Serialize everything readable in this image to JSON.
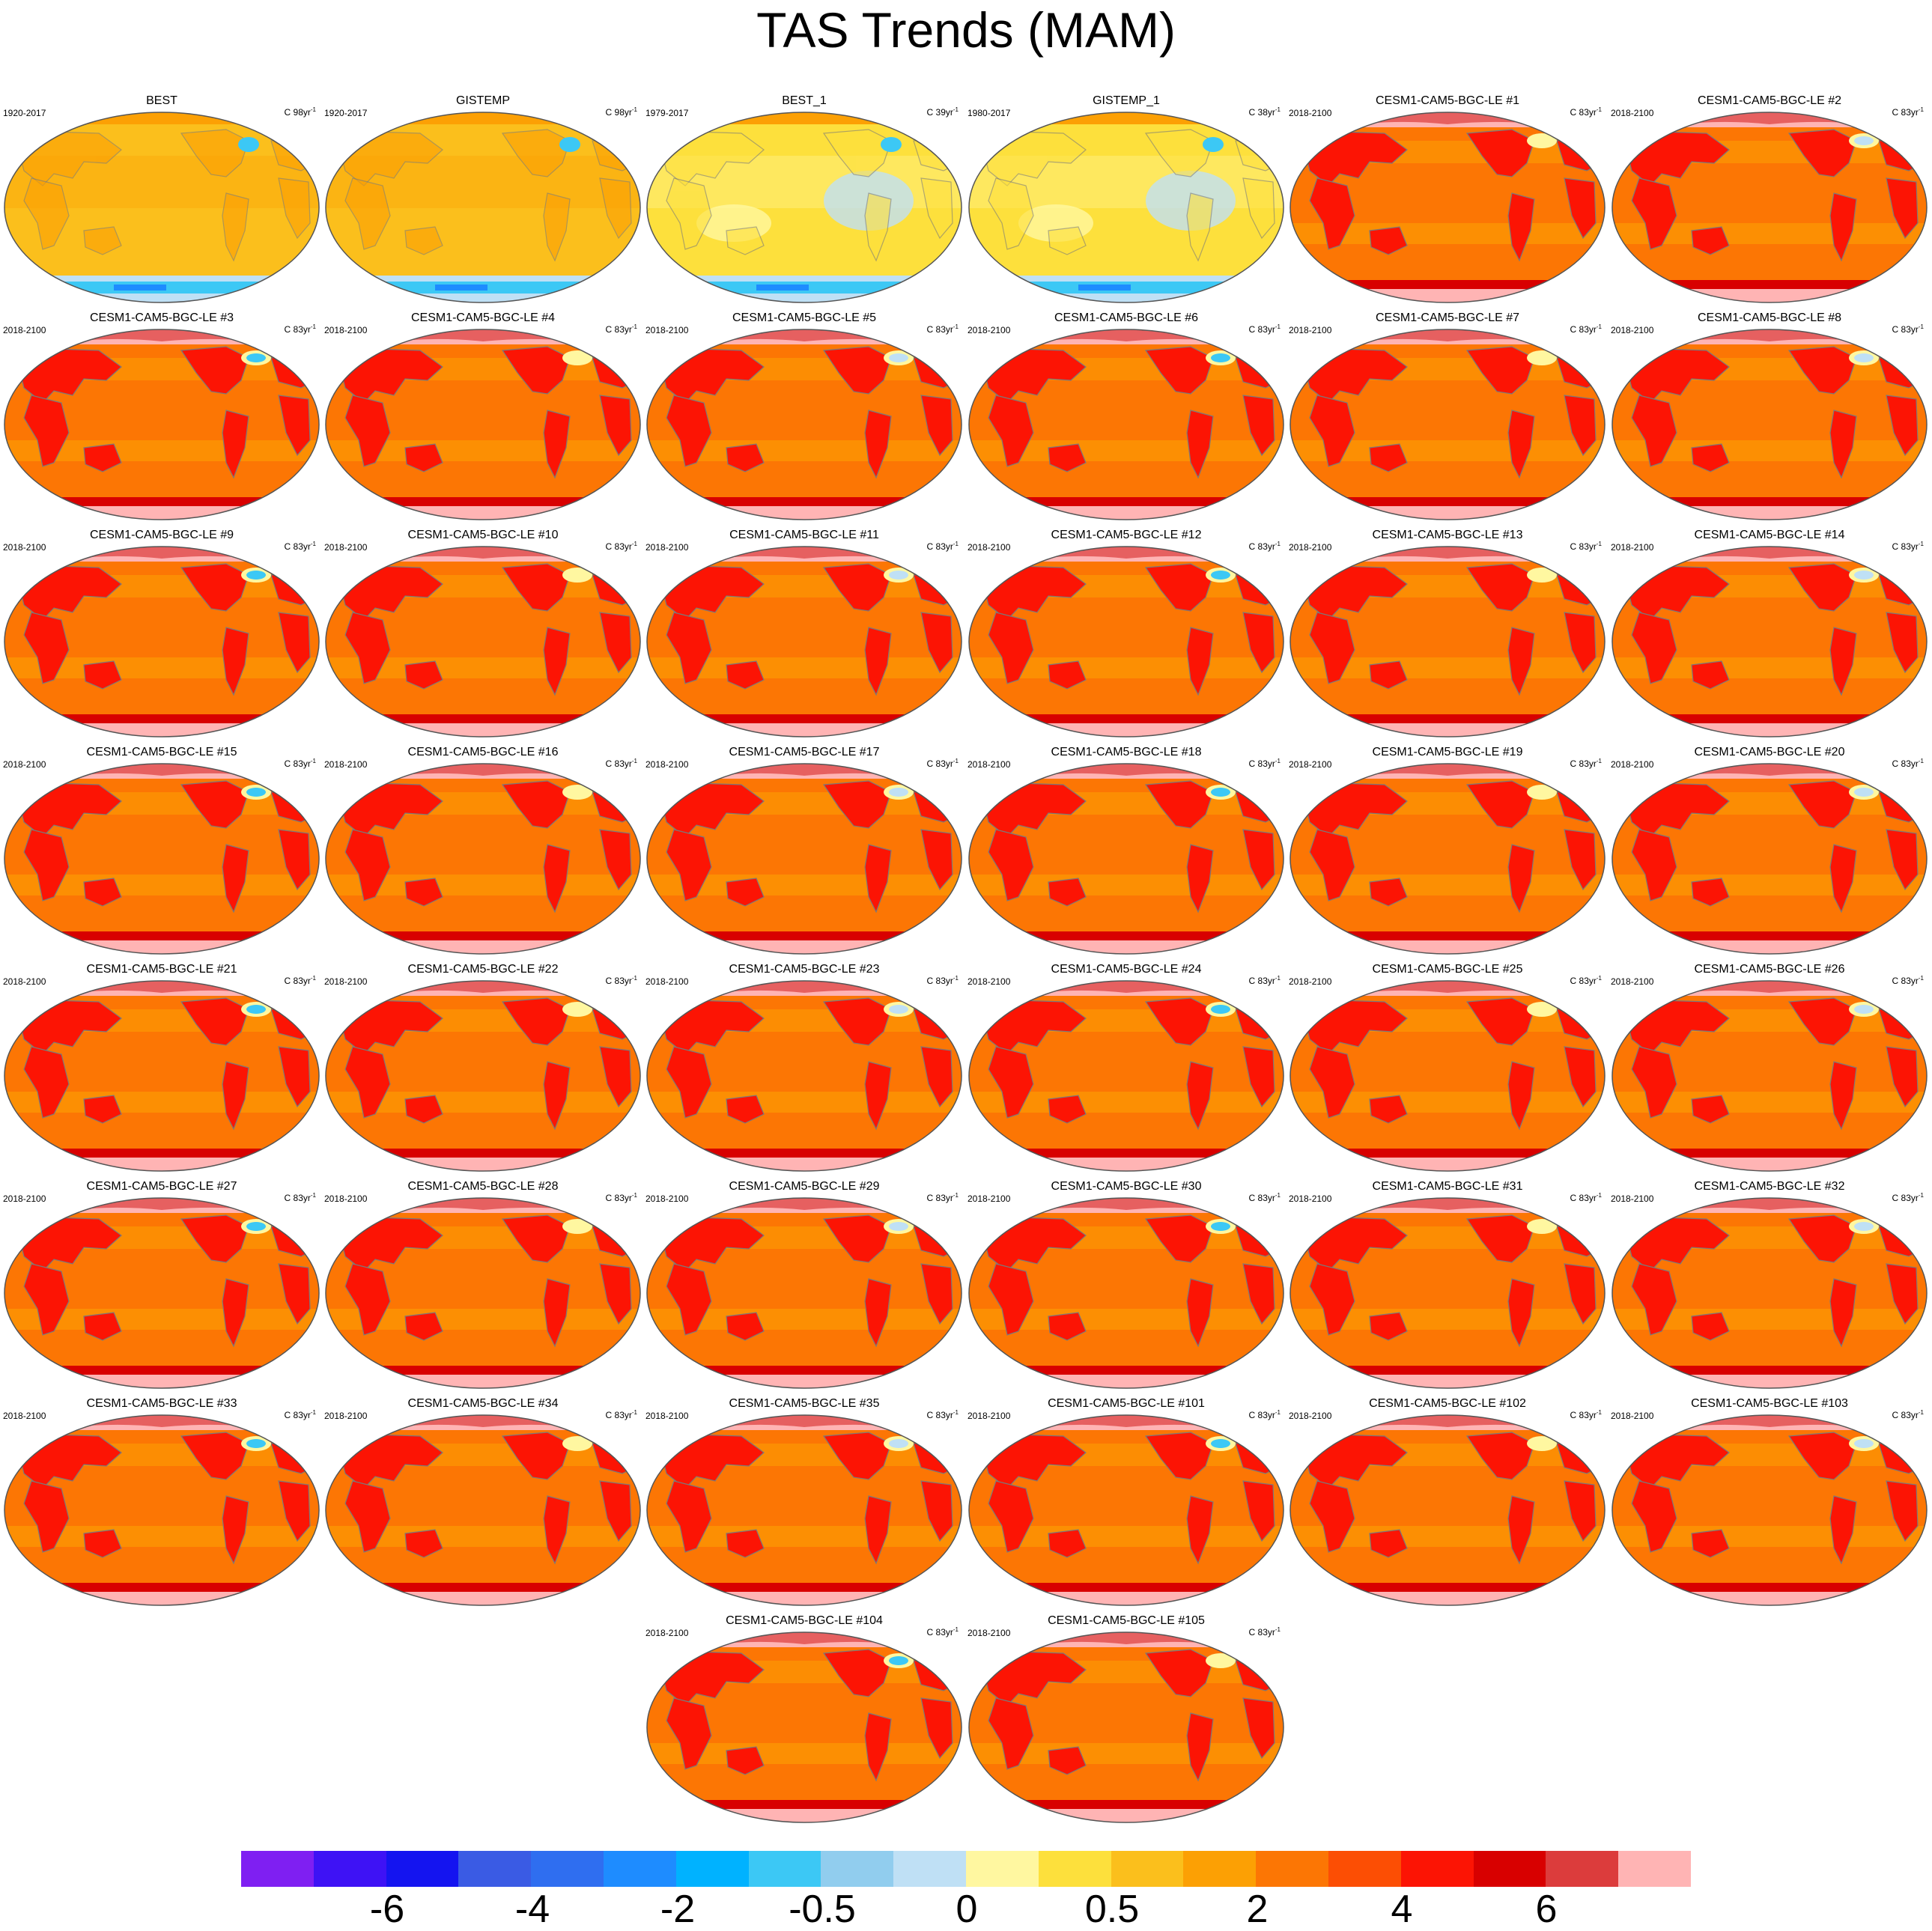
{
  "title": "TAS Trends (MAM)",
  "panels": [
    {
      "title": "BEST",
      "period": "1920-2017",
      "unit": "C 98yr",
      "unit_exp": "-1",
      "style": "obs"
    },
    {
      "title": "GISTEMP",
      "period": "1920-2017",
      "unit": "C 98yr",
      "unit_exp": "-1",
      "style": "obs"
    },
    {
      "title": "BEST_1",
      "period": "1979-2017",
      "unit": "C 39yr",
      "unit_exp": "-1",
      "style": "obs_recent"
    },
    {
      "title": "GISTEMP_1",
      "period": "1980-2017",
      "unit": "C 38yr",
      "unit_exp": "-1",
      "style": "obs_recent"
    },
    {
      "title": "CESM1-CAM5-BGC-LE #1",
      "period": "2018-2100",
      "unit": "C 83yr",
      "unit_exp": "-1",
      "style": "model"
    },
    {
      "title": "CESM1-CAM5-BGC-LE #2",
      "period": "2018-2100",
      "unit": "C 83yr",
      "unit_exp": "-1",
      "style": "model"
    },
    {
      "title": "CESM1-CAM5-BGC-LE #3",
      "period": "2018-2100",
      "unit": "C 83yr",
      "unit_exp": "-1",
      "style": "model"
    },
    {
      "title": "CESM1-CAM5-BGC-LE #4",
      "period": "2018-2100",
      "unit": "C 83yr",
      "unit_exp": "-1",
      "style": "model"
    },
    {
      "title": "CESM1-CAM5-BGC-LE #5",
      "period": "2018-2100",
      "unit": "C 83yr",
      "unit_exp": "-1",
      "style": "model"
    },
    {
      "title": "CESM1-CAM5-BGC-LE #6",
      "period": "2018-2100",
      "unit": "C 83yr",
      "unit_exp": "-1",
      "style": "model"
    },
    {
      "title": "CESM1-CAM5-BGC-LE #7",
      "period": "2018-2100",
      "unit": "C 83yr",
      "unit_exp": "-1",
      "style": "model"
    },
    {
      "title": "CESM1-CAM5-BGC-LE #8",
      "period": "2018-2100",
      "unit": "C 83yr",
      "unit_exp": "-1",
      "style": "model"
    },
    {
      "title": "CESM1-CAM5-BGC-LE #9",
      "period": "2018-2100",
      "unit": "C 83yr",
      "unit_exp": "-1",
      "style": "model"
    },
    {
      "title": "CESM1-CAM5-BGC-LE #10",
      "period": "2018-2100",
      "unit": "C 83yr",
      "unit_exp": "-1",
      "style": "model"
    },
    {
      "title": "CESM1-CAM5-BGC-LE #11",
      "period": "2018-2100",
      "unit": "C 83yr",
      "unit_exp": "-1",
      "style": "model"
    },
    {
      "title": "CESM1-CAM5-BGC-LE #12",
      "period": "2018-2100",
      "unit": "C 83yr",
      "unit_exp": "-1",
      "style": "model"
    },
    {
      "title": "CESM1-CAM5-BGC-LE #13",
      "period": "2018-2100",
      "unit": "C 83yr",
      "unit_exp": "-1",
      "style": "model"
    },
    {
      "title": "CESM1-CAM5-BGC-LE #14",
      "period": "2018-2100",
      "unit": "C 83yr",
      "unit_exp": "-1",
      "style": "model"
    },
    {
      "title": "CESM1-CAM5-BGC-LE #15",
      "period": "2018-2100",
      "unit": "C 83yr",
      "unit_exp": "-1",
      "style": "model"
    },
    {
      "title": "CESM1-CAM5-BGC-LE #16",
      "period": "2018-2100",
      "unit": "C 83yr",
      "unit_exp": "-1",
      "style": "model"
    },
    {
      "title": "CESM1-CAM5-BGC-LE #17",
      "period": "2018-2100",
      "unit": "C 83yr",
      "unit_exp": "-1",
      "style": "model"
    },
    {
      "title": "CESM1-CAM5-BGC-LE #18",
      "period": "2018-2100",
      "unit": "C 83yr",
      "unit_exp": "-1",
      "style": "model"
    },
    {
      "title": "CESM1-CAM5-BGC-LE #19",
      "period": "2018-2100",
      "unit": "C 83yr",
      "unit_exp": "-1",
      "style": "model"
    },
    {
      "title": "CESM1-CAM5-BGC-LE #20",
      "period": "2018-2100",
      "unit": "C 83yr",
      "unit_exp": "-1",
      "style": "model"
    },
    {
      "title": "CESM1-CAM5-BGC-LE #21",
      "period": "2018-2100",
      "unit": "C 83yr",
      "unit_exp": "-1",
      "style": "model"
    },
    {
      "title": "CESM1-CAM5-BGC-LE #22",
      "period": "2018-2100",
      "unit": "C 83yr",
      "unit_exp": "-1",
      "style": "model"
    },
    {
      "title": "CESM1-CAM5-BGC-LE #23",
      "period": "2018-2100",
      "unit": "C 83yr",
      "unit_exp": "-1",
      "style": "model"
    },
    {
      "title": "CESM1-CAM5-BGC-LE #24",
      "period": "2018-2100",
      "unit": "C 83yr",
      "unit_exp": "-1",
      "style": "model"
    },
    {
      "title": "CESM1-CAM5-BGC-LE #25",
      "period": "2018-2100",
      "unit": "C 83yr",
      "unit_exp": "-1",
      "style": "model"
    },
    {
      "title": "CESM1-CAM5-BGC-LE #26",
      "period": "2018-2100",
      "unit": "C 83yr",
      "unit_exp": "-1",
      "style": "model"
    },
    {
      "title": "CESM1-CAM5-BGC-LE #27",
      "period": "2018-2100",
      "unit": "C 83yr",
      "unit_exp": "-1",
      "style": "model"
    },
    {
      "title": "CESM1-CAM5-BGC-LE #28",
      "period": "2018-2100",
      "unit": "C 83yr",
      "unit_exp": "-1",
      "style": "model"
    },
    {
      "title": "CESM1-CAM5-BGC-LE #29",
      "period": "2018-2100",
      "unit": "C 83yr",
      "unit_exp": "-1",
      "style": "model"
    },
    {
      "title": "CESM1-CAM5-BGC-LE #30",
      "period": "2018-2100",
      "unit": "C 83yr",
      "unit_exp": "-1",
      "style": "model"
    },
    {
      "title": "CESM1-CAM5-BGC-LE #31",
      "period": "2018-2100",
      "unit": "C 83yr",
      "unit_exp": "-1",
      "style": "model"
    },
    {
      "title": "CESM1-CAM5-BGC-LE #32",
      "period": "2018-2100",
      "unit": "C 83yr",
      "unit_exp": "-1",
      "style": "model"
    },
    {
      "title": "CESM1-CAM5-BGC-LE #33",
      "period": "2018-2100",
      "unit": "C 83yr",
      "unit_exp": "-1",
      "style": "model"
    },
    {
      "title": "CESM1-CAM5-BGC-LE #34",
      "period": "2018-2100",
      "unit": "C 83yr",
      "unit_exp": "-1",
      "style": "model"
    },
    {
      "title": "CESM1-CAM5-BGC-LE #35",
      "period": "2018-2100",
      "unit": "C 83yr",
      "unit_exp": "-1",
      "style": "model"
    },
    {
      "title": "CESM1-CAM5-BGC-LE #101",
      "period": "2018-2100",
      "unit": "C 83yr",
      "unit_exp": "-1",
      "style": "model"
    },
    {
      "title": "CESM1-CAM5-BGC-LE #102",
      "period": "2018-2100",
      "unit": "C 83yr",
      "unit_exp": "-1",
      "style": "model"
    },
    {
      "title": "CESM1-CAM5-BGC-LE #103",
      "period": "2018-2100",
      "unit": "C 83yr",
      "unit_exp": "-1",
      "style": "model"
    },
    {
      "title": "CESM1-CAM5-BGC-LE #104",
      "period": "2018-2100",
      "unit": "C 83yr",
      "unit_exp": "-1",
      "style": "model"
    },
    {
      "title": "CESM1-CAM5-BGC-LE #105",
      "period": "2018-2100",
      "unit": "C 83yr",
      "unit_exp": "-1",
      "style": "model"
    }
  ],
  "colorbar": {
    "colors": [
      "#7f1ff2",
      "#3e12f5",
      "#1414f0",
      "#3a5be4",
      "#2f6ef0",
      "#1e8cff",
      "#00b2ff",
      "#3cc8f5",
      "#91cdee",
      "#bfe0f5",
      "#fff7a0",
      "#fde03c",
      "#fbbf1c",
      "#fca004",
      "#fc7604",
      "#fc4e04",
      "#fc1404",
      "#d80000",
      "#dc3c3c",
      "#ffb4b4"
    ],
    "labels": [
      "-6",
      "-4",
      "-2",
      "-0.5",
      "0",
      "0.5",
      "2",
      "4",
      "6"
    ]
  },
  "map_colors": {
    "obs_base": "#fbbf1c",
    "obs_alt": "#fca004",
    "obs_recent_base": "#fde03c",
    "obs_light": "#fff7a0",
    "cool_light": "#bfe0f5",
    "cool": "#3cc8f5",
    "cool_deep": "#1e8cff",
    "model_ocean": "#fc7604",
    "model_ocean_alt": "#fca004",
    "model_land": "#fc1404",
    "model_land_alt": "#d80000",
    "model_arctic": "#ffb4b4",
    "model_arctic_alt": "#dc3c3c",
    "coast": "#7a7a7a",
    "border": "#555555"
  }
}
